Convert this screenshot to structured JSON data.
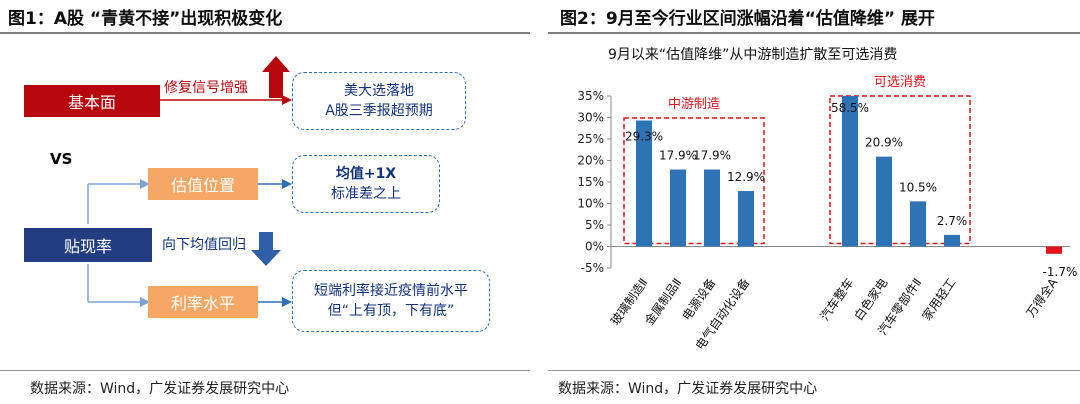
{
  "left_panel": {
    "title": "图1：A股 “青黄不接”出现积极变化",
    "source": "数据来源：Wind，广发证券发展研究中心",
    "fundamentals_label": "基本面",
    "fundamentals_change": "修复信号增强",
    "fundamentals_note_line1": "美大选落地",
    "fundamentals_note_line2": "A股三季报超预期",
    "vs_label": "VS",
    "discount_rate_label": "贴现率",
    "discount_rate_change": "向下均值回归",
    "valuation_label": "估值位置",
    "valuation_note_line1": "均值+1X",
    "valuation_note_line2": "标准差之上",
    "interest_label": "利率水平",
    "interest_note_line1": "短端利率接近疫情前水平",
    "interest_note_line2": "但“上有顶，下有底”",
    "colors": {
      "red": "#b8060d",
      "navy": "#223e80",
      "orange": "#f6a766",
      "blue_arrow": "#2e5fa8",
      "dash": "#2f6fb6"
    }
  },
  "right_panel": {
    "title": "图2：9月至今行业区间涨幅沿着“估值降维” 展开",
    "source": "数据来源：Wind，广发证券发展研究中心"
  },
  "chart_data": {
    "type": "bar",
    "title": "9月以来“估值降维”从中游制造扩散至可选消费",
    "categories": [
      "玻璃制造Ⅱ",
      "金属制品Ⅱ",
      "电源设备",
      "电气自动化设备",
      "汽车整车",
      "白色家电",
      "汽车零部件Ⅱ",
      "家用轻工",
      "万得全A"
    ],
    "values": [
      29.3,
      17.9,
      17.9,
      12.9,
      58.5,
      20.9,
      10.5,
      2.7,
      -1.7
    ],
    "data_labels": [
      "29.3%",
      "17.9%",
      "17.9%",
      "12.9%",
      "58.5%",
      "20.9%",
      "10.5%",
      "2.7%",
      "-1.7%"
    ],
    "ylim": [
      -5,
      35
    ],
    "yticks": [
      "-5%",
      "0%",
      "5%",
      "10%",
      "15%",
      "20%",
      "25%",
      "30%",
      "35%"
    ],
    "ytick_values": [
      -5,
      0,
      5,
      10,
      15,
      20,
      25,
      30,
      35
    ],
    "groups": [
      {
        "label": "中游制造",
        "from": 0,
        "to": 3
      },
      {
        "label": "可选消费",
        "from": 4,
        "to": 7
      }
    ],
    "bar_color": "#2e74b5",
    "negative_color": "#e0141c",
    "group_color": "#e0141c",
    "grid": false
  }
}
